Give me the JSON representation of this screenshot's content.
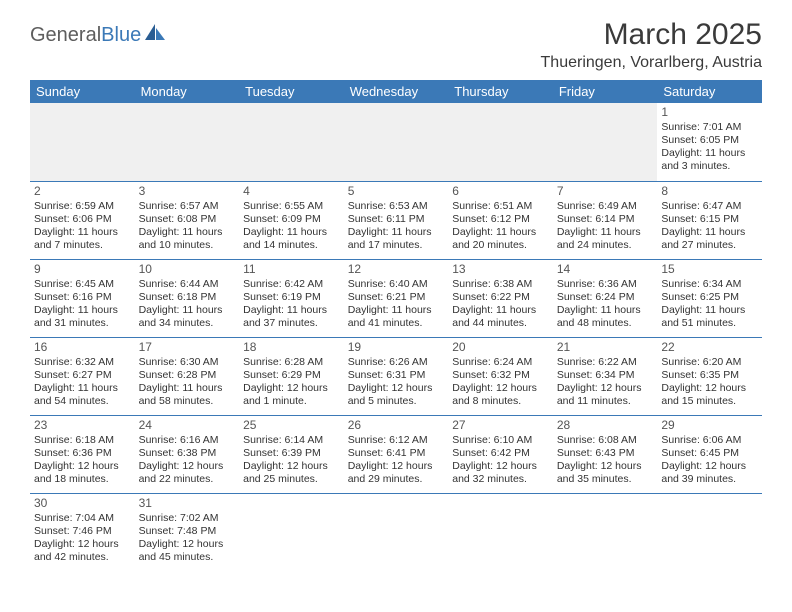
{
  "logo": {
    "part1": "General",
    "part2": "Blue"
  },
  "title": "March 2025",
  "location": "Thueringen, Vorarlberg, Austria",
  "colors": {
    "header_bg": "#3b79b7",
    "header_fg": "#ffffff",
    "border": "#3b79b7",
    "text": "#333333",
    "logo_gray": "#5d5d5d",
    "logo_blue": "#3b79b7",
    "blank_bg": "#f0f0f0"
  },
  "weekdays": [
    "Sunday",
    "Monday",
    "Tuesday",
    "Wednesday",
    "Thursday",
    "Friday",
    "Saturday"
  ],
  "weeks": [
    [
      null,
      null,
      null,
      null,
      null,
      null,
      {
        "day": "1",
        "sunrise": "Sunrise: 7:01 AM",
        "sunset": "Sunset: 6:05 PM",
        "daylight": "Daylight: 11 hours and 3 minutes."
      }
    ],
    [
      {
        "day": "2",
        "sunrise": "Sunrise: 6:59 AM",
        "sunset": "Sunset: 6:06 PM",
        "daylight": "Daylight: 11 hours and 7 minutes."
      },
      {
        "day": "3",
        "sunrise": "Sunrise: 6:57 AM",
        "sunset": "Sunset: 6:08 PM",
        "daylight": "Daylight: 11 hours and 10 minutes."
      },
      {
        "day": "4",
        "sunrise": "Sunrise: 6:55 AM",
        "sunset": "Sunset: 6:09 PM",
        "daylight": "Daylight: 11 hours and 14 minutes."
      },
      {
        "day": "5",
        "sunrise": "Sunrise: 6:53 AM",
        "sunset": "Sunset: 6:11 PM",
        "daylight": "Daylight: 11 hours and 17 minutes."
      },
      {
        "day": "6",
        "sunrise": "Sunrise: 6:51 AM",
        "sunset": "Sunset: 6:12 PM",
        "daylight": "Daylight: 11 hours and 20 minutes."
      },
      {
        "day": "7",
        "sunrise": "Sunrise: 6:49 AM",
        "sunset": "Sunset: 6:14 PM",
        "daylight": "Daylight: 11 hours and 24 minutes."
      },
      {
        "day": "8",
        "sunrise": "Sunrise: 6:47 AM",
        "sunset": "Sunset: 6:15 PM",
        "daylight": "Daylight: 11 hours and 27 minutes."
      }
    ],
    [
      {
        "day": "9",
        "sunrise": "Sunrise: 6:45 AM",
        "sunset": "Sunset: 6:16 PM",
        "daylight": "Daylight: 11 hours and 31 minutes."
      },
      {
        "day": "10",
        "sunrise": "Sunrise: 6:44 AM",
        "sunset": "Sunset: 6:18 PM",
        "daylight": "Daylight: 11 hours and 34 minutes."
      },
      {
        "day": "11",
        "sunrise": "Sunrise: 6:42 AM",
        "sunset": "Sunset: 6:19 PM",
        "daylight": "Daylight: 11 hours and 37 minutes."
      },
      {
        "day": "12",
        "sunrise": "Sunrise: 6:40 AM",
        "sunset": "Sunset: 6:21 PM",
        "daylight": "Daylight: 11 hours and 41 minutes."
      },
      {
        "day": "13",
        "sunrise": "Sunrise: 6:38 AM",
        "sunset": "Sunset: 6:22 PM",
        "daylight": "Daylight: 11 hours and 44 minutes."
      },
      {
        "day": "14",
        "sunrise": "Sunrise: 6:36 AM",
        "sunset": "Sunset: 6:24 PM",
        "daylight": "Daylight: 11 hours and 48 minutes."
      },
      {
        "day": "15",
        "sunrise": "Sunrise: 6:34 AM",
        "sunset": "Sunset: 6:25 PM",
        "daylight": "Daylight: 11 hours and 51 minutes."
      }
    ],
    [
      {
        "day": "16",
        "sunrise": "Sunrise: 6:32 AM",
        "sunset": "Sunset: 6:27 PM",
        "daylight": "Daylight: 11 hours and 54 minutes."
      },
      {
        "day": "17",
        "sunrise": "Sunrise: 6:30 AM",
        "sunset": "Sunset: 6:28 PM",
        "daylight": "Daylight: 11 hours and 58 minutes."
      },
      {
        "day": "18",
        "sunrise": "Sunrise: 6:28 AM",
        "sunset": "Sunset: 6:29 PM",
        "daylight": "Daylight: 12 hours and 1 minute."
      },
      {
        "day": "19",
        "sunrise": "Sunrise: 6:26 AM",
        "sunset": "Sunset: 6:31 PM",
        "daylight": "Daylight: 12 hours and 5 minutes."
      },
      {
        "day": "20",
        "sunrise": "Sunrise: 6:24 AM",
        "sunset": "Sunset: 6:32 PM",
        "daylight": "Daylight: 12 hours and 8 minutes."
      },
      {
        "day": "21",
        "sunrise": "Sunrise: 6:22 AM",
        "sunset": "Sunset: 6:34 PM",
        "daylight": "Daylight: 12 hours and 11 minutes."
      },
      {
        "day": "22",
        "sunrise": "Sunrise: 6:20 AM",
        "sunset": "Sunset: 6:35 PM",
        "daylight": "Daylight: 12 hours and 15 minutes."
      }
    ],
    [
      {
        "day": "23",
        "sunrise": "Sunrise: 6:18 AM",
        "sunset": "Sunset: 6:36 PM",
        "daylight": "Daylight: 12 hours and 18 minutes."
      },
      {
        "day": "24",
        "sunrise": "Sunrise: 6:16 AM",
        "sunset": "Sunset: 6:38 PM",
        "daylight": "Daylight: 12 hours and 22 minutes."
      },
      {
        "day": "25",
        "sunrise": "Sunrise: 6:14 AM",
        "sunset": "Sunset: 6:39 PM",
        "daylight": "Daylight: 12 hours and 25 minutes."
      },
      {
        "day": "26",
        "sunrise": "Sunrise: 6:12 AM",
        "sunset": "Sunset: 6:41 PM",
        "daylight": "Daylight: 12 hours and 29 minutes."
      },
      {
        "day": "27",
        "sunrise": "Sunrise: 6:10 AM",
        "sunset": "Sunset: 6:42 PM",
        "daylight": "Daylight: 12 hours and 32 minutes."
      },
      {
        "day": "28",
        "sunrise": "Sunrise: 6:08 AM",
        "sunset": "Sunset: 6:43 PM",
        "daylight": "Daylight: 12 hours and 35 minutes."
      },
      {
        "day": "29",
        "sunrise": "Sunrise: 6:06 AM",
        "sunset": "Sunset: 6:45 PM",
        "daylight": "Daylight: 12 hours and 39 minutes."
      }
    ],
    [
      {
        "day": "30",
        "sunrise": "Sunrise: 7:04 AM",
        "sunset": "Sunset: 7:46 PM",
        "daylight": "Daylight: 12 hours and 42 minutes."
      },
      {
        "day": "31",
        "sunrise": "Sunrise: 7:02 AM",
        "sunset": "Sunset: 7:48 PM",
        "daylight": "Daylight: 12 hours and 45 minutes."
      },
      null,
      null,
      null,
      null,
      null
    ]
  ]
}
